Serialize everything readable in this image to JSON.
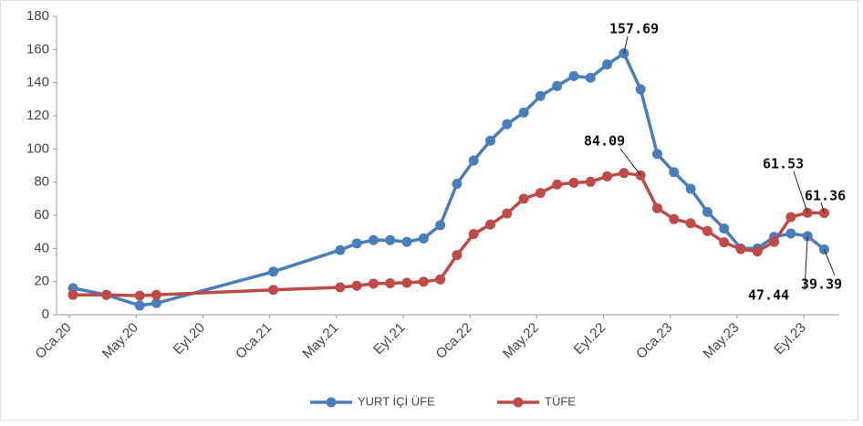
{
  "chart_data": {
    "type": "line",
    "categories": [
      "Oca.20",
      null,
      null,
      null,
      "May.20",
      null,
      null,
      null,
      "Eyl.20",
      null,
      null,
      null,
      "Oca.21",
      null,
      null,
      null,
      "May.21",
      null,
      null,
      null,
      "Eyl.21",
      null,
      null,
      null,
      "Oca.22",
      null,
      null,
      null,
      "May.22",
      null,
      null,
      null,
      "Eyl.22",
      null,
      null,
      null,
      "Oca.23",
      null,
      null,
      null,
      "May.23",
      null,
      null,
      null,
      "Eyl.23",
      null
    ],
    "series": [
      {
        "name": "YURT İÇİ ÜFE",
        "color": "#4a7ebb",
        "values": [
          16,
          null,
          12,
          null,
          5.5,
          7,
          null,
          null,
          null,
          null,
          null,
          null,
          26,
          null,
          null,
          null,
          39,
          43,
          45,
          45,
          44,
          46,
          54,
          79,
          93,
          105,
          115,
          122,
          132,
          138,
          144,
          143,
          151,
          157.69,
          136,
          97,
          86,
          76,
          62,
          52,
          40,
          40,
          47,
          49,
          47.44,
          39.39
        ]
      },
      {
        "name": "TÜFE",
        "color": "#be4b48",
        "values": [
          12,
          null,
          12,
          null,
          11.5,
          12,
          null,
          null,
          null,
          null,
          null,
          null,
          15,
          null,
          null,
          null,
          16.5,
          17.5,
          18.7,
          19,
          19.3,
          19.9,
          21.3,
          36,
          48.7,
          54.4,
          61.1,
          70,
          73.5,
          78.6,
          79.6,
          80.2,
          83.5,
          85.5,
          84.09,
          64.3,
          57.7,
          55.2,
          50.5,
          43.7,
          39.6,
          38.2,
          44,
          58.9,
          61.53,
          61.36
        ]
      }
    ],
    "ylim": [
      0,
      180
    ],
    "yticks": [
      0,
      20,
      40,
      60,
      80,
      100,
      120,
      140,
      160,
      180
    ],
    "grid": false,
    "legend": "bottom"
  }
}
